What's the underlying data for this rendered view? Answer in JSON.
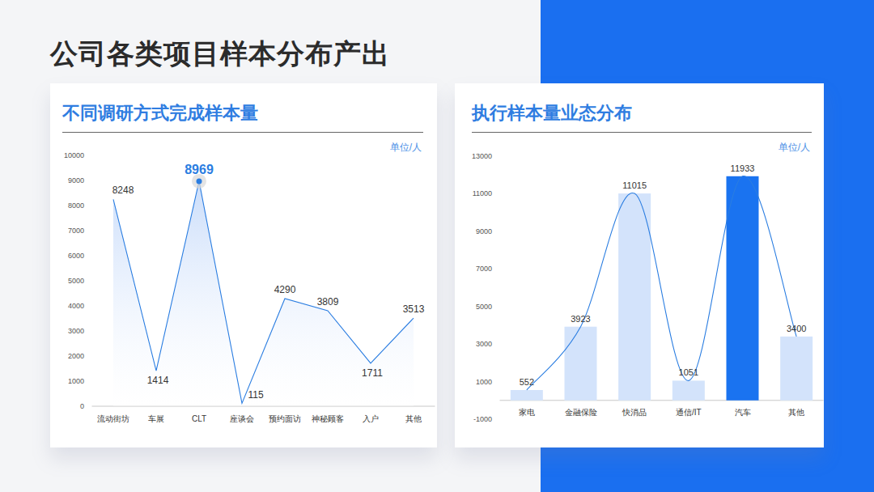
{
  "title": "公司各类项目样本分布产出",
  "chart_data": [
    {
      "type": "line",
      "title": "不同调研方式完成样本量",
      "ylabel": "单位/人",
      "categories": [
        "流动街坊",
        "车展",
        "CLT",
        "座谈会",
        "预约面访",
        "神秘顾客",
        "入户",
        "其他"
      ],
      "values": [
        8248,
        1414,
        8969,
        115,
        4290,
        3809,
        1711,
        3513
      ],
      "color": "#2a7de1",
      "ylim": [
        0,
        10000
      ],
      "yticks": [
        0,
        1000,
        2000,
        3000,
        4000,
        5000,
        6000,
        7000,
        8000,
        9000,
        10000
      ],
      "grid": false,
      "data_labels": true
    },
    {
      "type": "bar",
      "title": "执行样本量业态分布",
      "ylabel": "单位/人",
      "categories": [
        "家电",
        "金融保险",
        "快消品",
        "通信/IT",
        "汽车",
        "其他"
      ],
      "series": [
        {
          "type": "bar",
          "values": [
            552,
            3923,
            11015,
            1051,
            11933,
            3400
          ],
          "colors": [
            "#d3e3fb",
            "#d3e3fb",
            "#d3e3fb",
            "#d3e3fb",
            "#1a73f0",
            "#d3e3fb"
          ]
        },
        {
          "type": "line",
          "values": [
            552,
            3923,
            11015,
            1051,
            11933,
            3400
          ],
          "color": "#2a7de1",
          "line_style": "smooth"
        }
      ],
      "ylim": [
        -1000,
        13000
      ],
      "yticks": [
        -1000,
        1000,
        3000,
        5000,
        7000,
        9000,
        11000,
        13000
      ],
      "grid": false,
      "data_labels": true
    }
  ]
}
